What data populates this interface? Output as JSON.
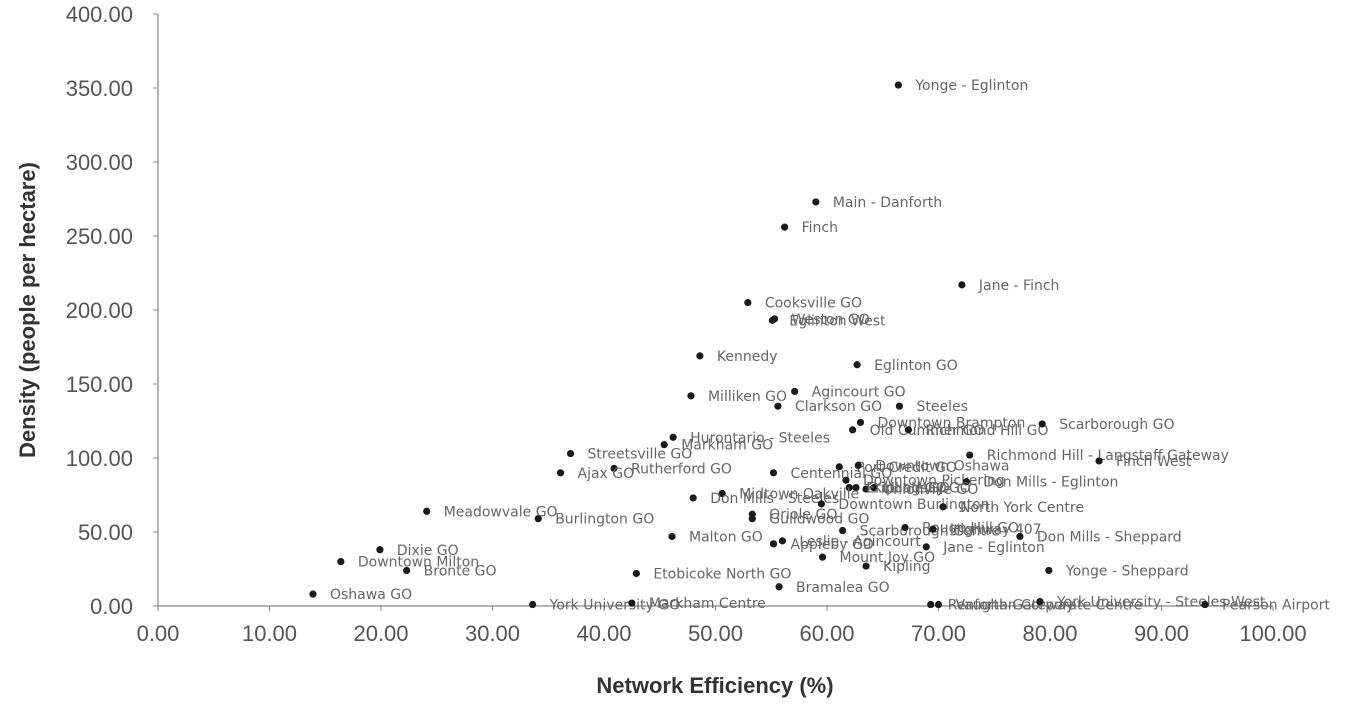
{
  "chart_data": {
    "type": "scatter",
    "title": "",
    "xlabel": "Network Efficiency (%)",
    "ylabel": "Density (people per hectare)",
    "xlim": [
      0,
      100
    ],
    "ylim": [
      0,
      400
    ],
    "x_ticks": [
      "0.00",
      "10.00",
      "20.00",
      "30.00",
      "40.00",
      "50.00",
      "60.00",
      "70.00",
      "80.00",
      "90.00",
      "100.00"
    ],
    "y_ticks": [
      "0.00",
      "50.00",
      "100.00",
      "150.00",
      "200.00",
      "250.00",
      "300.00",
      "350.00",
      "400.00"
    ],
    "grid": false,
    "legend": "none",
    "points": [
      {
        "label": "Yonge - Eglinton",
        "x": 66.4,
        "y": 352
      },
      {
        "label": "Main - Danforth",
        "x": 59.0,
        "y": 273
      },
      {
        "label": "Finch",
        "x": 56.2,
        "y": 256
      },
      {
        "label": "Jane - Finch",
        "x": 72.1,
        "y": 217
      },
      {
        "label": "Cooksville GO",
        "x": 52.9,
        "y": 205
      },
      {
        "label": "Weston GO",
        "x": 55.3,
        "y": 194
      },
      {
        "label": "Eglinton West",
        "x": 55.1,
        "y": 193
      },
      {
        "label": "Kennedy",
        "x": 48.6,
        "y": 169
      },
      {
        "label": "Eglinton GO",
        "x": 62.7,
        "y": 163
      },
      {
        "label": "Agincourt GO",
        "x": 57.1,
        "y": 145
      },
      {
        "label": "Milliken GO",
        "x": 47.8,
        "y": 142
      },
      {
        "label": "Clarkson GO",
        "x": 55.6,
        "y": 135
      },
      {
        "label": "Steeles",
        "x": 66.5,
        "y": 135
      },
      {
        "label": "Downtown Brampton",
        "x": 63.0,
        "y": 124
      },
      {
        "label": "Old Cummer GO",
        "x": 62.3,
        "y": 119
      },
      {
        "label": "Richmond Hill GO",
        "x": 67.3,
        "y": 119
      },
      {
        "label": "Scarborough GO",
        "x": 79.3,
        "y": 123
      },
      {
        "label": "Hurontario - Steeles",
        "x": 46.2,
        "y": 114
      },
      {
        "label": "Markham GO",
        "x": 45.4,
        "y": 109
      },
      {
        "label": "Streetsville GO",
        "x": 37.0,
        "y": 103
      },
      {
        "label": "Richmond Hill - Langstaff Gateway",
        "x": 72.8,
        "y": 102
      },
      {
        "label": "Finch West",
        "x": 84.4,
        "y": 98
      },
      {
        "label": "Rutherford GO",
        "x": 40.9,
        "y": 93
      },
      {
        "label": "Ajax GO",
        "x": 36.1,
        "y": 90
      },
      {
        "label": "Centennial GO",
        "x": 55.2,
        "y": 90
      },
      {
        "label": "Port Credit GO",
        "x": 61.1,
        "y": 94
      },
      {
        "label": "Downtown Oshawa",
        "x": 62.8,
        "y": 95
      },
      {
        "label": "Downtown Pickering",
        "x": 61.7,
        "y": 85
      },
      {
        "label": "Don Mills - Eglinton",
        "x": 72.5,
        "y": 84
      },
      {
        "label": "Kipling GO",
        "x": 62.6,
        "y": 80
      },
      {
        "label": "Lindsay GO",
        "x": 64.2,
        "y": 80
      },
      {
        "label": "Unionville GO",
        "x": 63.5,
        "y": 79
      },
      {
        "label": "Erindale GO",
        "x": 62.0,
        "y": 80
      },
      {
        "label": "Midtown Oakville",
        "x": 50.6,
        "y": 76
      },
      {
        "label": "Don Mills - Steeles",
        "x": 48.0,
        "y": 73
      },
      {
        "label": "Downtown Burlington",
        "x": 59.5,
        "y": 69
      },
      {
        "label": "North York Centre",
        "x": 70.4,
        "y": 67
      },
      {
        "label": "Meadowvale GO",
        "x": 24.1,
        "y": 64
      },
      {
        "label": "Burlington GO",
        "x": 34.1,
        "y": 59
      },
      {
        "label": "Oriole GO",
        "x": 53.3,
        "y": 62
      },
      {
        "label": "Guildwood GO",
        "x": 53.3,
        "y": 59
      },
      {
        "label": "Scarborough Centre",
        "x": 61.4,
        "y": 51
      },
      {
        "label": "Rouge Hill GO",
        "x": 67.0,
        "y": 53
      },
      {
        "label": "Highway 407",
        "x": 69.5,
        "y": 52
      },
      {
        "label": "Malton GO",
        "x": 46.1,
        "y": 47
      },
      {
        "label": "Leslie - Agincourt",
        "x": 56.0,
        "y": 44
      },
      {
        "label": "Appleby GO",
        "x": 55.2,
        "y": 42
      },
      {
        "label": "Don Mills - Sheppard",
        "x": 77.3,
        "y": 47
      },
      {
        "label": "Jane - Eglinton",
        "x": 68.9,
        "y": 40
      },
      {
        "label": "Mount Joy GO",
        "x": 59.6,
        "y": 33
      },
      {
        "label": "Kipling",
        "x": 63.5,
        "y": 27
      },
      {
        "label": "Dixie GO",
        "x": 19.9,
        "y": 38
      },
      {
        "label": "Downtown Milton",
        "x": 16.4,
        "y": 30
      },
      {
        "label": "Bronte GO",
        "x": 22.3,
        "y": 24
      },
      {
        "label": "Etobicoke North GO",
        "x": 42.9,
        "y": 22
      },
      {
        "label": "Yonge - Sheppard",
        "x": 79.9,
        "y": 24
      },
      {
        "label": "Bramalea GO",
        "x": 55.7,
        "y": 13
      },
      {
        "label": "Oshawa GO",
        "x": 13.9,
        "y": 8
      },
      {
        "label": "York University GO",
        "x": 33.6,
        "y": 1
      },
      {
        "label": "Markham Centre",
        "x": 42.5,
        "y": 2
      },
      {
        "label": "Renforth Gateway",
        "x": 69.3,
        "y": 1
      },
      {
        "label": "Vaughan Corporate Centre",
        "x": 70.0,
        "y": 1
      },
      {
        "label": "York University - Steeles West",
        "x": 79.1,
        "y": 3
      },
      {
        "label": "Pearson Airport",
        "x": 93.9,
        "y": 1
      }
    ]
  }
}
